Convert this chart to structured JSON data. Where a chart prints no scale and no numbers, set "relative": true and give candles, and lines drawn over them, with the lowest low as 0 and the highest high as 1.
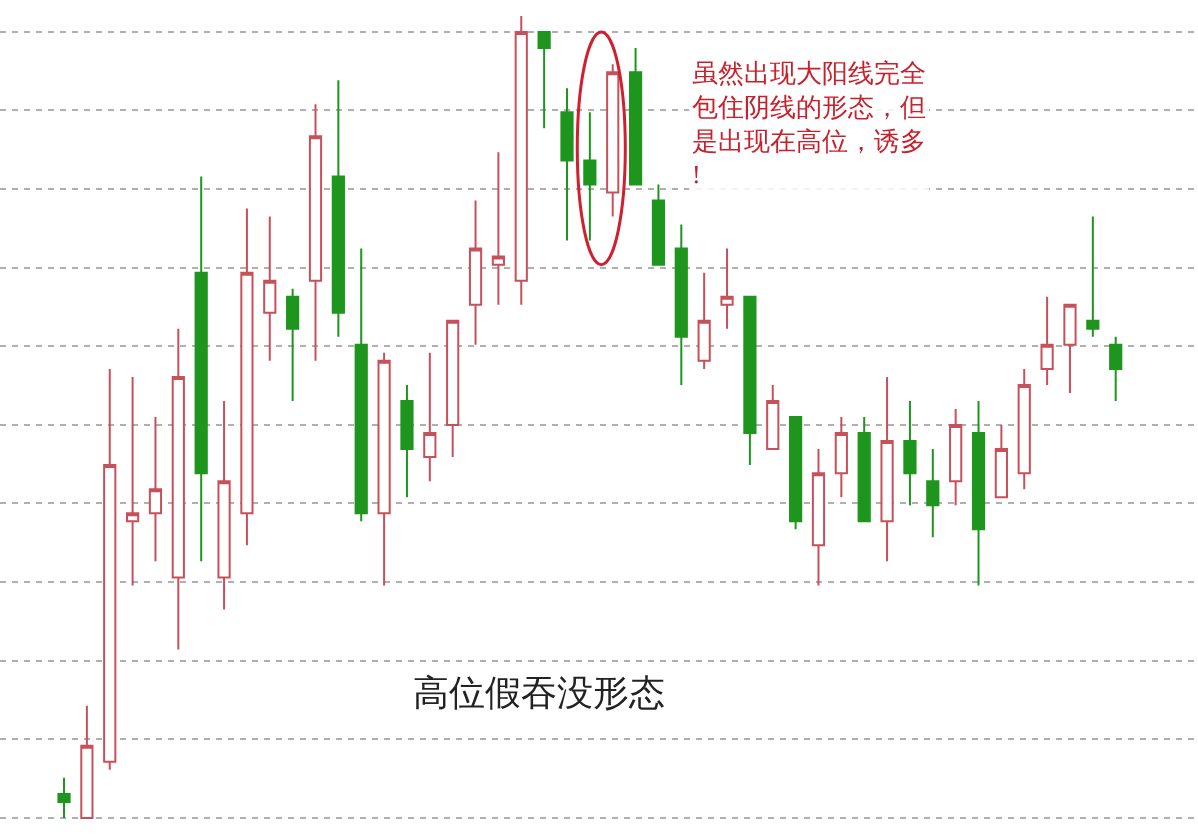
{
  "chart_data": {
    "type": "candlestick",
    "relative": true,
    "title": "高位假吞没形态",
    "annotations": [
      "虽然出现大阳线完全包住阴线的形态，但是出现在高位，诱多!"
    ],
    "grid": "y",
    "categories": [
      null,
      null,
      null,
      null,
      null,
      null,
      null,
      null,
      null,
      null,
      null,
      null,
      null,
      null,
      null,
      null,
      null,
      null,
      null,
      null,
      null,
      null,
      null,
      null,
      null,
      null,
      null,
      null,
      null,
      null,
      null,
      null,
      null,
      null,
      null,
      null,
      null,
      null,
      null,
      null,
      null,
      null,
      null,
      null,
      null,
      null,
      null
    ],
    "ohlc": [
      [
        0.03,
        0.05,
        0,
        0.02
      ],
      [
        0.0,
        0.14,
        0,
        0.09
      ],
      [
        0.07,
        0.56,
        0.06,
        0.44
      ],
      [
        0.37,
        0.55,
        0.29,
        0.38
      ],
      [
        0.38,
        0.5,
        0.32,
        0.41
      ],
      [
        0.3,
        0.61,
        0.21,
        0.55
      ],
      [
        0.68,
        0.8,
        0.32,
        0.43
      ],
      [
        0.3,
        0.52,
        0.26,
        0.42
      ],
      [
        0.38,
        0.76,
        0.34,
        0.68
      ],
      [
        0.63,
        0.75,
        0.57,
        0.67
      ],
      [
        0.65,
        0.66,
        0.52,
        0.61
      ],
      [
        0.67,
        0.89,
        0.57,
        0.85
      ],
      [
        0.8,
        0.92,
        0.6,
        0.63
      ],
      [
        0.59,
        0.71,
        0.37,
        0.38
      ],
      [
        0.38,
        0.58,
        0.29,
        0.57
      ],
      [
        0.52,
        0.54,
        0.4,
        0.46
      ],
      [
        0.45,
        0.58,
        0.42,
        0.48
      ],
      [
        0.49,
        0.62,
        0.45,
        0.62
      ],
      [
        0.64,
        0.77,
        0.59,
        0.71
      ],
      [
        0.69,
        0.83,
        0.64,
        0.7
      ],
      [
        0.67,
        1.0,
        0.64,
        0.98
      ],
      [
        0.98,
        0.98,
        0.86,
        0.96
      ],
      [
        0.88,
        0.91,
        0.72,
        0.82
      ],
      [
        0.82,
        0.88,
        0.72,
        0.79
      ],
      [
        0.78,
        0.94,
        0.75,
        0.93
      ],
      [
        0.93,
        0.96,
        0.79,
        0.79
      ],
      [
        0.77,
        0.79,
        0.69,
        0.69
      ],
      [
        0.71,
        0.74,
        0.54,
        0.6
      ],
      [
        0.57,
        0.68,
        0.56,
        0.62
      ],
      [
        0.64,
        0.71,
        0.61,
        0.65
      ],
      [
        0.65,
        0.65,
        0.44,
        0.48
      ],
      [
        0.46,
        0.54,
        0.46,
        0.52
      ],
      [
        0.5,
        0.5,
        0.36,
        0.37
      ],
      [
        0.34,
        0.46,
        0.29,
        0.43
      ],
      [
        0.43,
        0.5,
        0.4,
        0.48
      ],
      [
        0.48,
        0.5,
        0.37,
        0.37
      ],
      [
        0.37,
        0.55,
        0.32,
        0.47
      ],
      [
        0.47,
        0.52,
        0.39,
        0.43
      ],
      [
        0.42,
        0.46,
        0.35,
        0.39
      ],
      [
        0.42,
        0.51,
        0.39,
        0.49
      ],
      [
        0.48,
        0.52,
        0.29,
        0.36
      ],
      [
        0.4,
        0.49,
        0.4,
        0.46
      ],
      [
        0.43,
        0.56,
        0.41,
        0.54
      ],
      [
        0.56,
        0.65,
        0.54,
        0.59
      ],
      [
        0.59,
        0.64,
        0.53,
        0.64
      ],
      [
        0.62,
        0.75,
        0.6,
        0.61
      ],
      [
        0.59,
        0.6,
        0.52,
        0.56
      ]
    ],
    "colors": [
      "#1e961e",
      "#c8505a",
      "#c8505a",
      "#c8505a",
      "#c8505a",
      "#c8505a",
      "#1e961e",
      "#c8505a",
      "#c8505a",
      "#c8505a",
      "#1e961e",
      "#c8505a",
      "#1e961e",
      "#1e961e",
      "#c8505a",
      "#1e961e",
      "#c8505a",
      "#c8505a",
      "#c8505a",
      "#c8505a",
      "#c8505a",
      "#1e961e",
      "#1e961e",
      "#1e961e",
      "#c8505a",
      "#1e961e",
      "#1e961e",
      "#1e961e",
      "#c8505a",
      "#c8505a",
      "#1e961e",
      "#c8505a",
      "#1e961e",
      "#c8505a",
      "#c8505a",
      "#1e961e",
      "#c8505a",
      "#1e961e",
      "#1e961e",
      "#c8505a",
      "#1e961e",
      "#c8505a",
      "#c8505a",
      "#c8505a",
      "#c8505a",
      "#1e961e",
      "#1e961e"
    ]
  }
}
